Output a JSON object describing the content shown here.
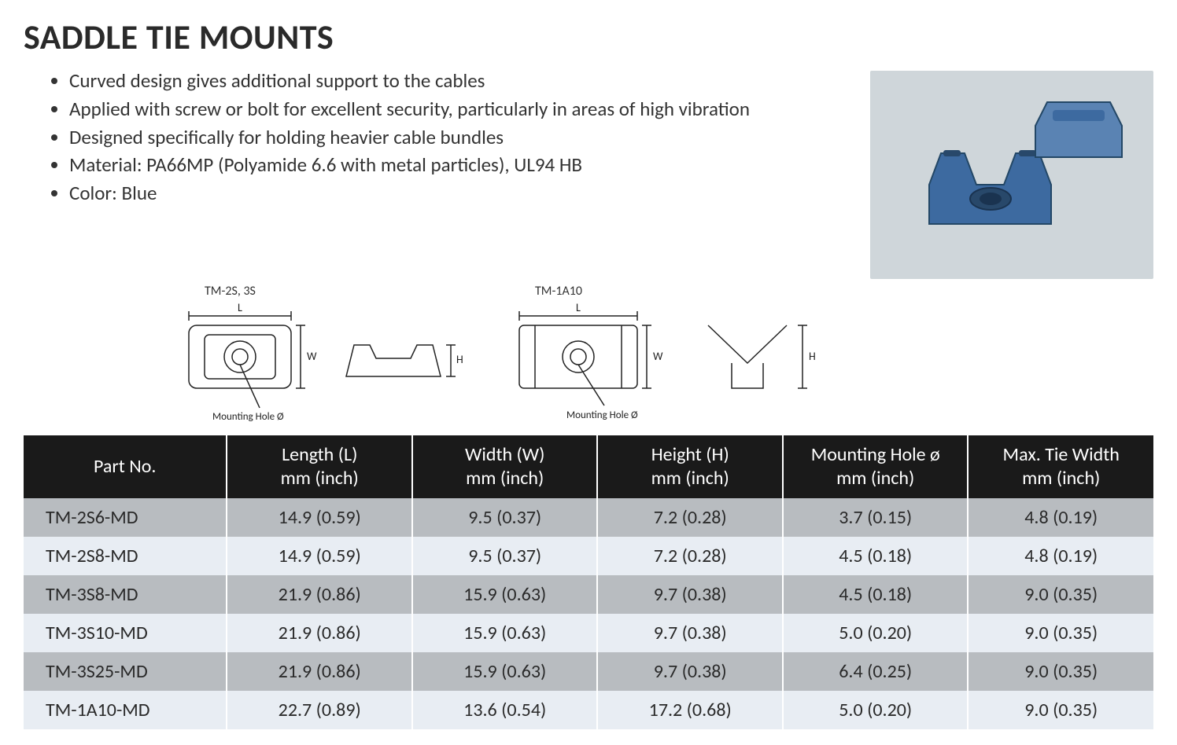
{
  "title": "SADDLE TIE MOUNTS",
  "bullets": [
    "Curved design gives additional support to the cables",
    "Applied with screw or bolt for excellent security, particularly in areas of high vibration",
    "Designed specifically for holding heavier cable bundles",
    "Material: PA66MP (Polyamide 6.6 with metal particles), UL94 HB",
    "Color: Blue"
  ],
  "diagrams": {
    "left_label": "TM-2S, 3S",
    "right_label": "TM-1A10",
    "dim_L": "L",
    "dim_W": "W",
    "dim_H": "H",
    "mounting_hole": "Mounting Hole Ø"
  },
  "photo_alt": "Blue saddle tie mounts product photo",
  "table": {
    "header_bg": "#1a1a1a",
    "header_fg": "#ffffff",
    "row_a_bg": "#b8bcc0",
    "row_b_bg": "#e8edf3",
    "columns": [
      "Part No.",
      "Length (L)\nmm (inch)",
      "Width (W)\nmm (inch)",
      "Height (H)\nmm (inch)",
      "Mounting Hole ø\nmm (inch)",
      "Max. Tie Width\nmm (inch)"
    ],
    "rows": [
      [
        "TM-2S6-MD",
        "14.9 (0.59)",
        "9.5 (0.37)",
        "7.2 (0.28)",
        "3.7 (0.15)",
        "4.8 (0.19)"
      ],
      [
        "TM-2S8-MD",
        "14.9 (0.59)",
        "9.5 (0.37)",
        "7.2 (0.28)",
        "4.5 (0.18)",
        "4.8 (0.19)"
      ],
      [
        "TM-3S8-MD",
        "21.9 (0.86)",
        "15.9 (0.63)",
        "9.7 (0.38)",
        "4.5 (0.18)",
        "9.0 (0.35)"
      ],
      [
        "TM-3S10-MD",
        "21.9 (0.86)",
        "15.9 (0.63)",
        "9.7 (0.38)",
        "5.0 (0.20)",
        "9.0 (0.35)"
      ],
      [
        "TM-3S25-MD",
        "21.9 (0.86)",
        "15.9 (0.63)",
        "9.7 (0.38)",
        "6.4 (0.25)",
        "9.0 (0.35)"
      ],
      [
        "TM-1A10-MD",
        "22.7 (0.89)",
        "13.6 (0.54)",
        "17.2 (0.68)",
        "5.0 (0.20)",
        "9.0 (0.35)"
      ]
    ]
  }
}
